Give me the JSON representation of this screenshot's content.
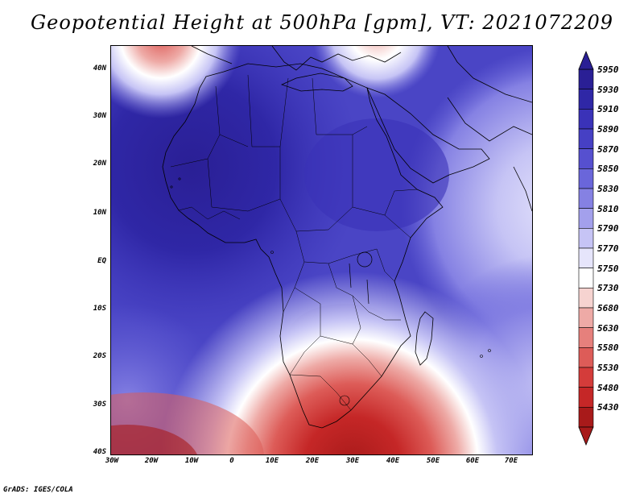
{
  "title": "Geopotential Height at 500hPa [gpm], VT: 2021072209",
  "footer": "GrADS: IGES/COLA",
  "lat_labels": [
    "40N",
    "30N",
    "20N",
    "10N",
    "EQ",
    "10S",
    "20S",
    "30S",
    "40S"
  ],
  "lon_labels": [
    "30W",
    "20W",
    "10W",
    "0",
    "10E",
    "20E",
    "30E",
    "40E",
    "50E",
    "60E",
    "70E"
  ],
  "colorbar": {
    "levels": [
      "5950",
      "5930",
      "5910",
      "5890",
      "5870",
      "5850",
      "5830",
      "5810",
      "5790",
      "5770",
      "5750",
      "5730",
      "5680",
      "5630",
      "5580",
      "5530",
      "5480",
      "5430"
    ],
    "colors": [
      "#2a1f95",
      "#2f27a6",
      "#3a32b8",
      "#4640c4",
      "#5650cf",
      "#6a66da",
      "#8581e3",
      "#a3a0ec",
      "#c6c4f5",
      "#e6e5fb",
      "#ffffff",
      "#f6d3d0",
      "#eeaaa6",
      "#e6807c",
      "#dd5c58",
      "#d43c3a",
      "#c52727",
      "#a81a1a"
    ]
  },
  "map_colors": {
    "base": "#4a45c5",
    "deep": "#2f27a6",
    "light_blue": "#8581e3",
    "pale": "#c6c4f5",
    "low_core": "#a81a1a",
    "low_mid": "#dd5c58",
    "low_outer": "#f6d3d0"
  }
}
